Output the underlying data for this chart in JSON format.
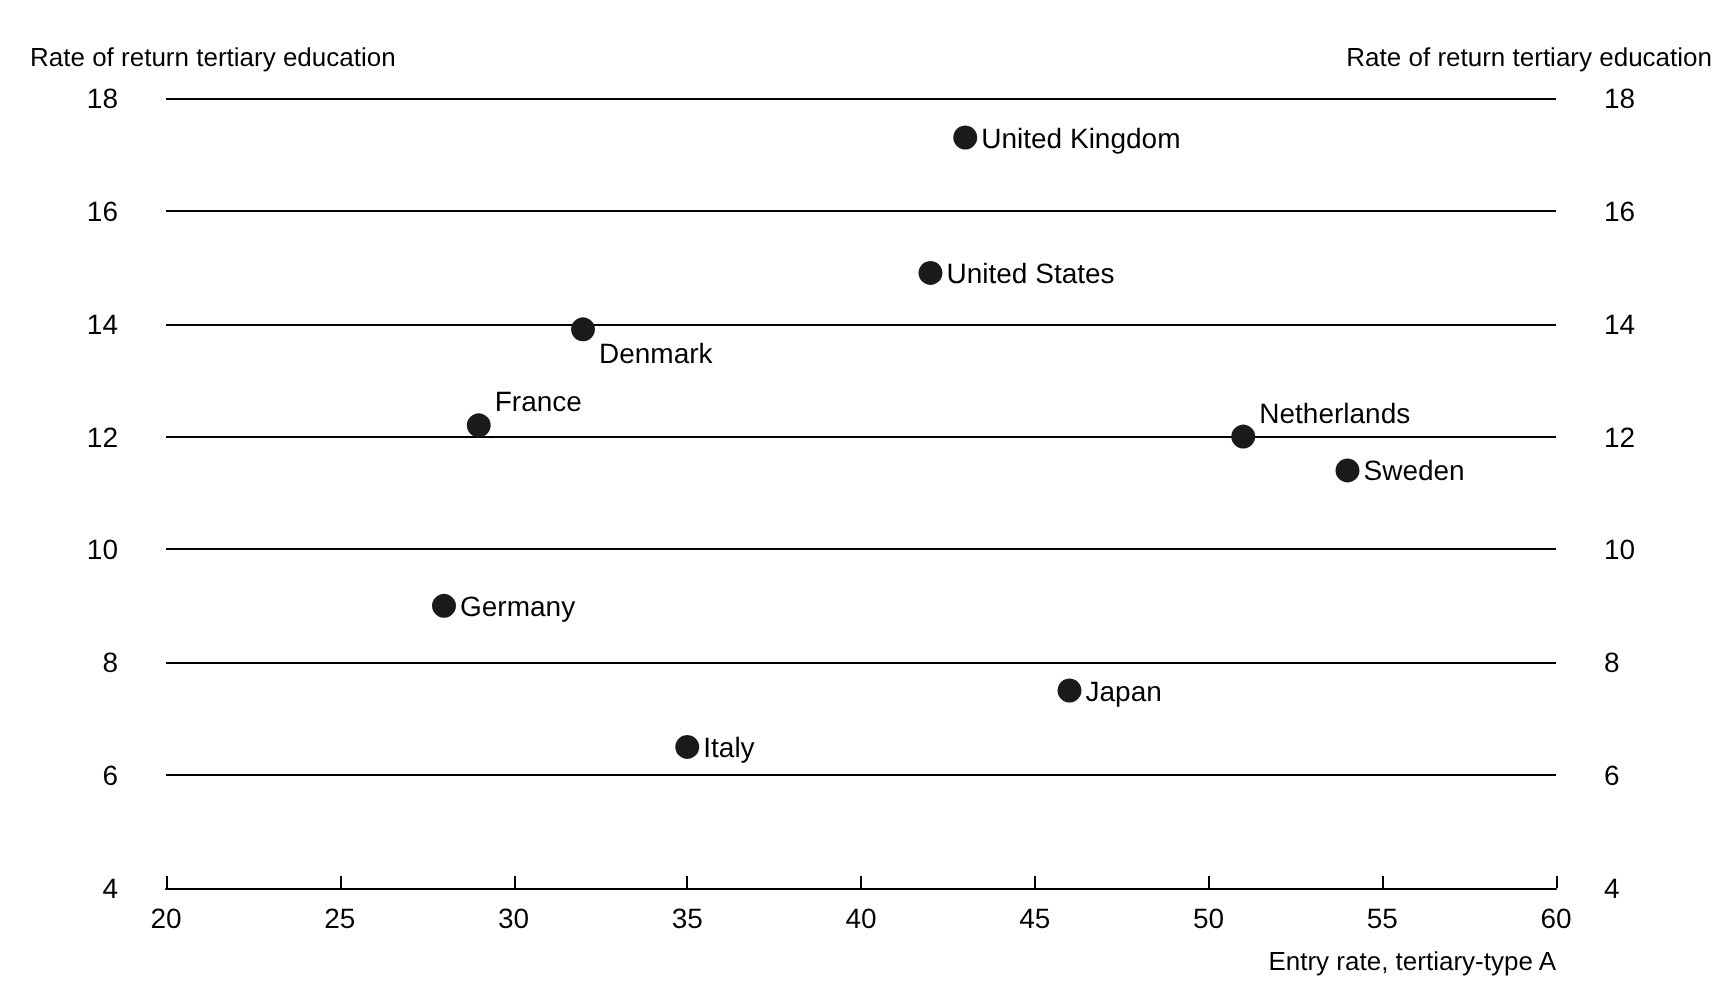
{
  "chart_data": {
    "type": "scatter",
    "xlabel": "Entry rate, tertiary-type A",
    "ylabel": "Rate of return tertiary education",
    "y2label": "Rate of return tertiary education",
    "x": [
      43,
      42,
      32,
      29,
      51,
      54,
      28,
      46,
      35
    ],
    "series": [
      {
        "color": "#1a1a1a",
        "values": [
          17.3,
          14.9,
          13.9,
          12.2,
          12.0,
          11.4,
          9.0,
          7.5,
          6.5
        ]
      }
    ],
    "annotations": [
      {
        "text": "United Kingdom",
        "x": 43,
        "y": 17.3
      },
      {
        "text": "United States",
        "x": 42,
        "y": 14.9
      },
      {
        "text": "Denmark",
        "x": 32,
        "y": 13.9
      },
      {
        "text": "France",
        "x": 29,
        "y": 12.2
      },
      {
        "text": "Netherlands",
        "x": 51,
        "y": 12.0
      },
      {
        "text": "Sweden",
        "x": 54,
        "y": 11.4
      },
      {
        "text": "Germany",
        "x": 28,
        "y": 9.0
      },
      {
        "text": "Japan",
        "x": 46,
        "y": 7.5
      },
      {
        "text": "Italy",
        "x": 35,
        "y": 6.5
      }
    ],
    "xlim": [
      20,
      60
    ],
    "xticks": [
      20,
      25,
      30,
      35,
      40,
      45,
      50,
      55,
      60
    ],
    "ylim": [
      4,
      18
    ],
    "yticks": [
      4,
      6,
      8,
      10,
      12,
      14,
      16,
      18
    ],
    "y2lim": [
      4,
      18
    ],
    "y2ticks": [
      4,
      6,
      8,
      10,
      12,
      14,
      16,
      18
    ],
    "grid": "y",
    "marker": "circle"
  }
}
